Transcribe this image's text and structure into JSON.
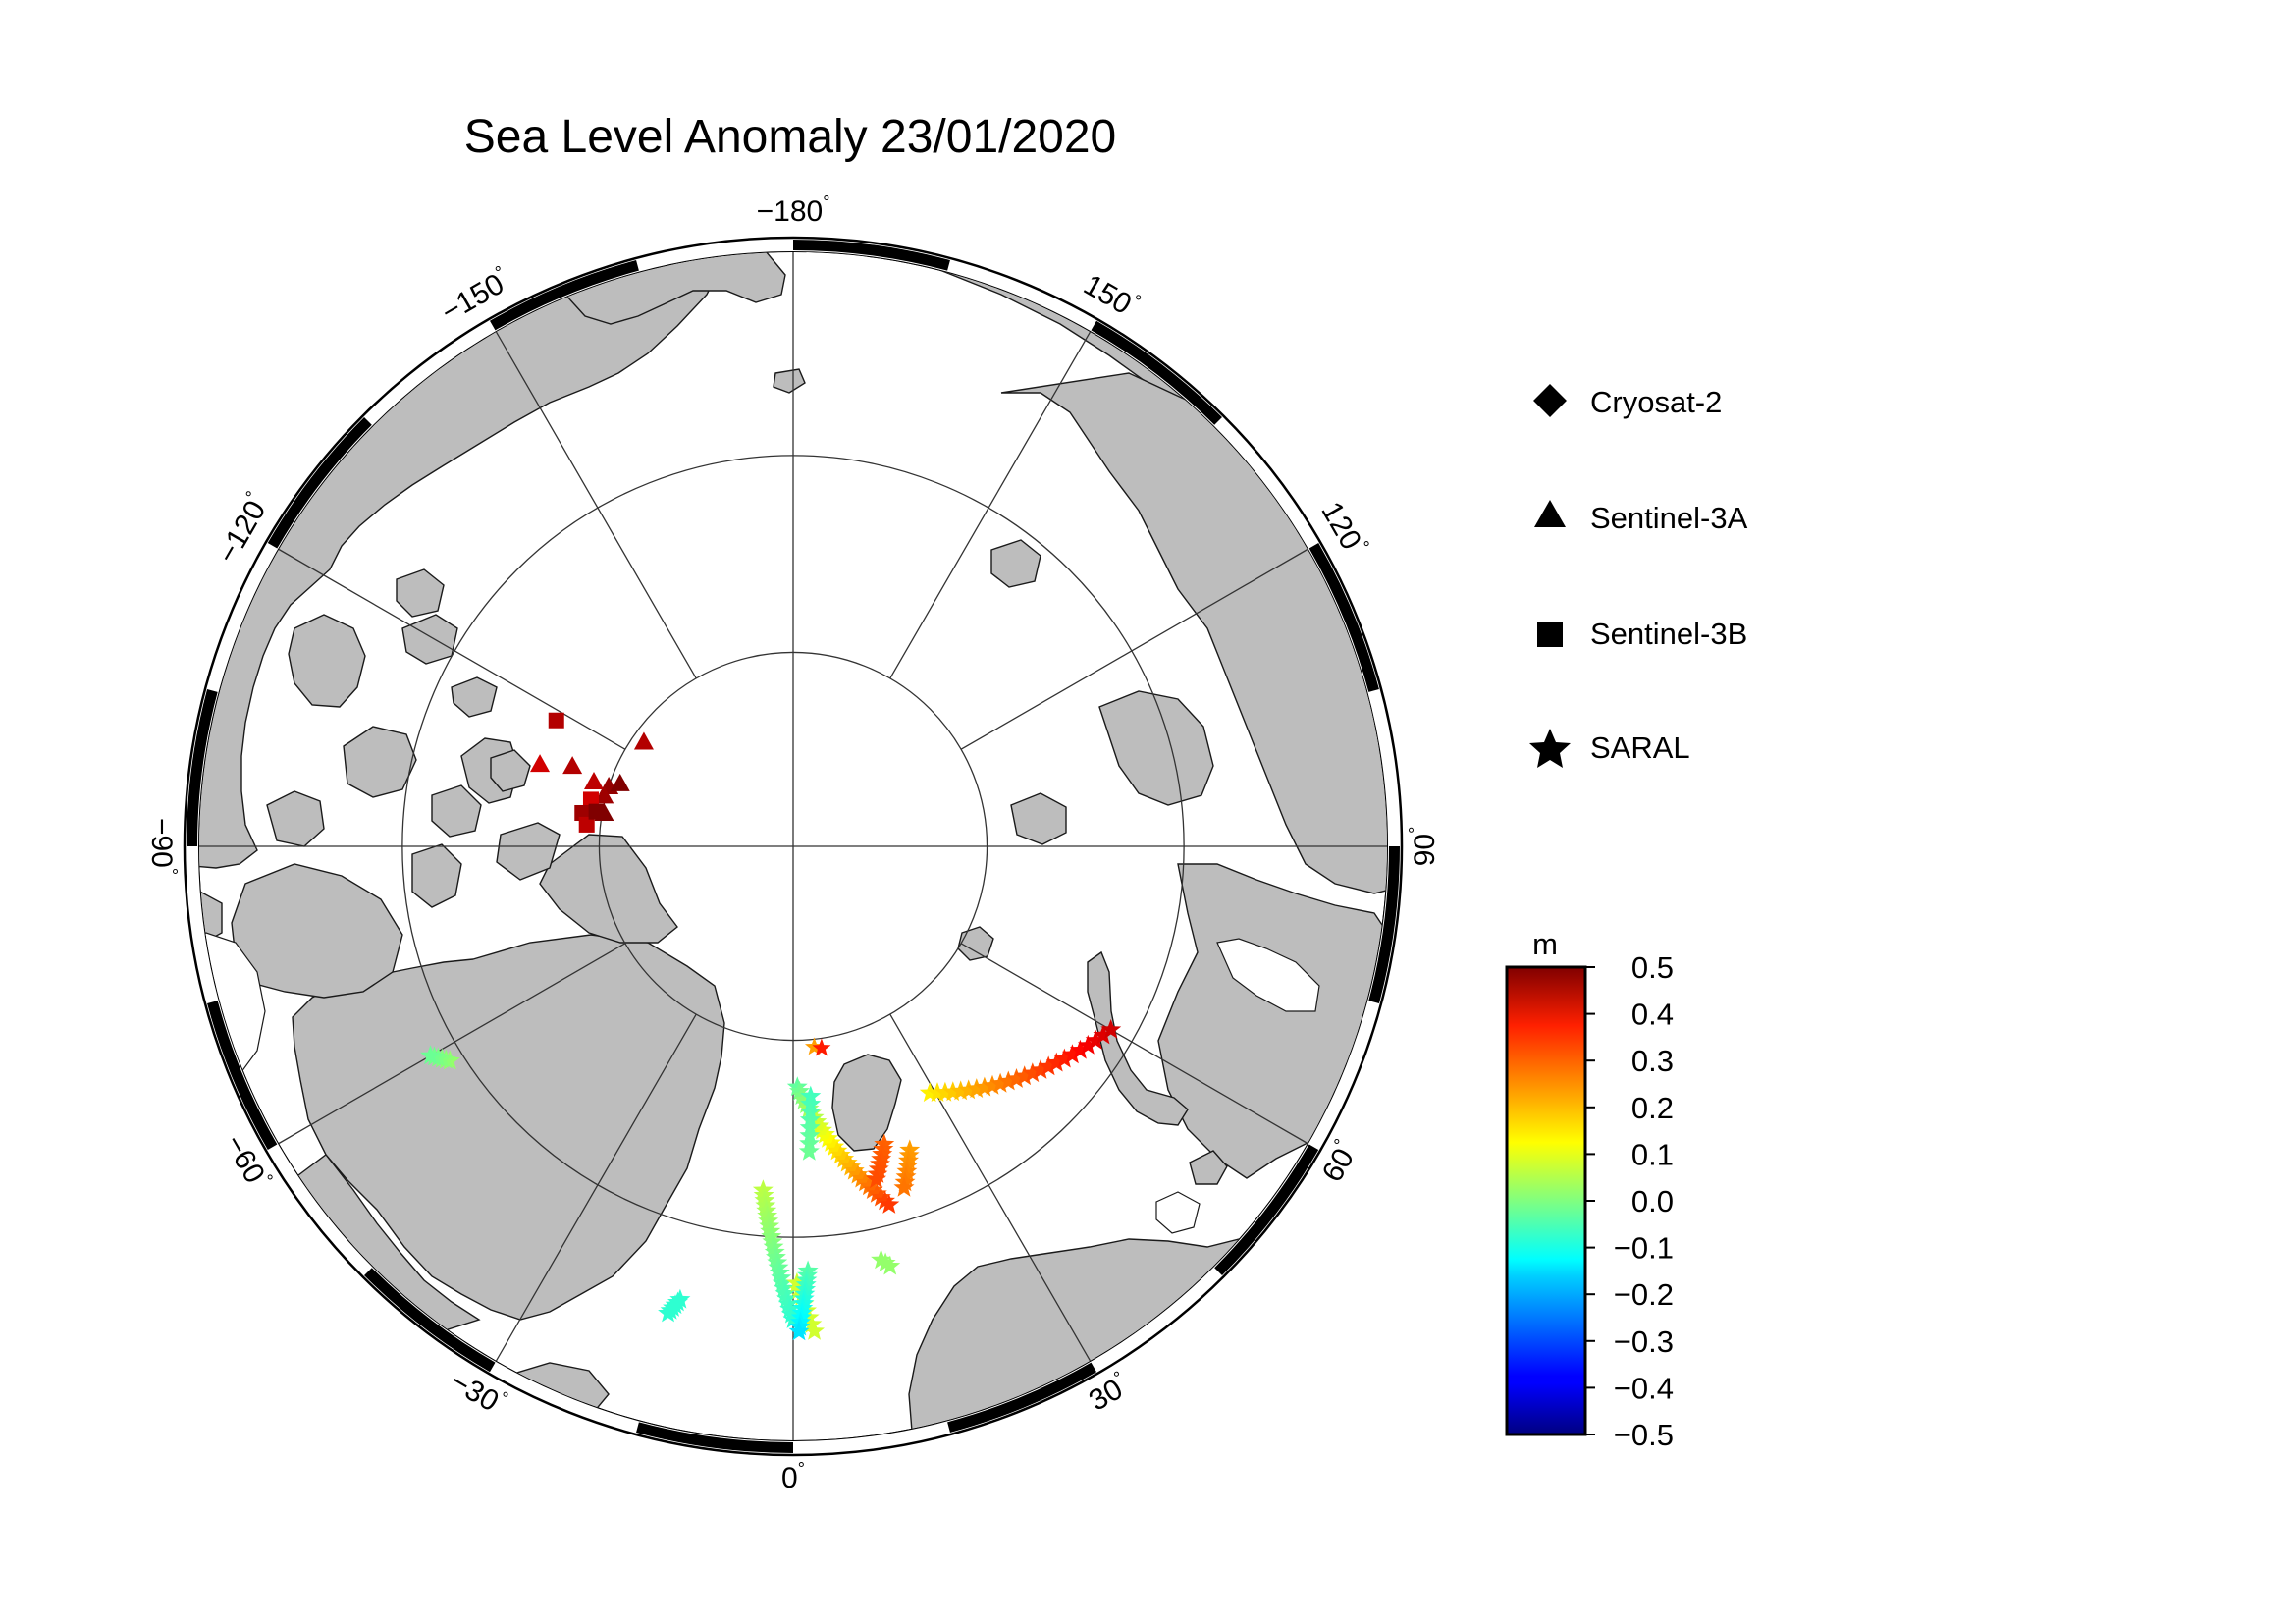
{
  "title": "Sea Level Anomaly 23/01/2020",
  "map": {
    "projection": "north-polar-stereographic",
    "center_label": "North Pole",
    "longitude_labels": [
      {
        "lon": -180,
        "text": "−180",
        "sup": "°"
      },
      {
        "lon": 150,
        "text": "150",
        "sup": "°"
      },
      {
        "lon": 120,
        "text": "120",
        "sup": "°"
      },
      {
        "lon": 90,
        "text": "90",
        "sup": "°"
      },
      {
        "lon": 60,
        "text": "60",
        "sup": "°"
      },
      {
        "lon": 30,
        "text": "30",
        "sup": "°"
      },
      {
        "lon": 0,
        "text": "0",
        "sup": "°"
      },
      {
        "lon": -30,
        "text": "−30",
        "sup": "°"
      },
      {
        "lon": -60,
        "text": "−60",
        "sup": "°"
      },
      {
        "lon": -90,
        "text": "−90",
        "sup": "°"
      },
      {
        "lon": -120,
        "text": "−120",
        "sup": "°"
      },
      {
        "lon": -150,
        "text": "−150",
        "sup": "°"
      }
    ],
    "land_color": "#bdbdbd",
    "ocean_color": "#ffffff"
  },
  "legend": {
    "items": [
      {
        "label": "Cryosat-2",
        "symbol": "diamond"
      },
      {
        "label": "Sentinel-3A",
        "symbol": "triangle"
      },
      {
        "label": "Sentinel-3B",
        "symbol": "square"
      },
      {
        "label": "SARAL",
        "symbol": "star"
      }
    ]
  },
  "colorbar": {
    "unit": "m",
    "min": -0.5,
    "max": 0.5,
    "tick_labels": [
      "0.5",
      "0.4",
      "0.3",
      "0.2",
      "0.1",
      "0.0",
      "−0.1",
      "−0.2",
      "−0.3",
      "−0.4",
      "−0.5"
    ],
    "colormap": "jet"
  },
  "observations": [
    {
      "satellite": "Sentinel-3A",
      "lat": 80.6,
      "lon": -125,
      "sla": 0.45
    },
    {
      "satellite": "Sentinel-3A",
      "lat": 80.0,
      "lon": -108,
      "sla": 0.48
    },
    {
      "satellite": "Sentinel-3A",
      "lat": 80.5,
      "lon": -110,
      "sla": 0.5
    },
    {
      "satellite": "Sentinel-3A",
      "lat": 79.6,
      "lon": -100,
      "sla": 0.46
    },
    {
      "satellite": "Sentinel-3A",
      "lat": 76.3,
      "lon": -108,
      "sla": 0.42
    },
    {
      "satellite": "Sentinel-3A",
      "lat": 77.9,
      "lon": -110,
      "sla": 0.45
    },
    {
      "satellite": "Sentinel-3A",
      "lat": 79.2,
      "lon": -108,
      "sla": 0.44
    },
    {
      "satellite": "Sentinel-3A",
      "lat": 79.9,
      "lon": -105,
      "sla": 0.47
    },
    {
      "satellite": "Sentinel-3A",
      "lat": 80.1,
      "lon": -100,
      "sla": 0.5
    },
    {
      "satellite": "Sentinel-3B",
      "lat": 76.2,
      "lon": -118,
      "sla": 0.45
    },
    {
      "satellite": "Sentinel-3B",
      "lat": 79.3,
      "lon": -103,
      "sla": 0.42
    },
    {
      "satellite": "Sentinel-3B",
      "lat": 79.0,
      "lon": -99,
      "sla": 0.47
    },
    {
      "satellite": "Sentinel-3B",
      "lat": 79.3,
      "lon": -96,
      "sla": 0.44
    },
    {
      "satellite": "Sentinel-3B",
      "lat": 79.7,
      "lon": -100,
      "sla": 0.5
    },
    {
      "satellite": "SARAL",
      "lat": 79.6,
      "lon": 6,
      "sla": 0.22
    },
    {
      "satellite": "SARAL",
      "lat": 79.5,
      "lon": 8,
      "sla": 0.35
    },
    {
      "satellite": "SARAL",
      "lat": 71.2,
      "lon": 60,
      "sla": 0.42
    }
  ],
  "tracks": [
    {
      "satellite": "SARAL",
      "from": {
        "lat": 75.5,
        "lon": 29
      },
      "to": {
        "lat": 71.2,
        "lon": 60
      },
      "sla_from": 0.14,
      "sla_to": 0.42,
      "points": 24
    },
    {
      "satellite": "SARAL",
      "from": {
        "lat": 77.6,
        "lon": 1
      },
      "to": {
        "lat": 71.0,
        "lon": 15
      },
      "sla_from": -0.03,
      "sla_to": 0.32,
      "points": 30
    },
    {
      "satellite": "SARAL",
      "from": {
        "lat": 77.1,
        "lon": 4
      },
      "to": {
        "lat": 74.3,
        "lon": 3
      },
      "sla_from": -0.06,
      "sla_to": -0.02,
      "points": 8
    },
    {
      "satellite": "SARAL",
      "from": {
        "lat": 74.0,
        "lon": 17
      },
      "to": {
        "lat": 72.4,
        "lon": 14
      },
      "sla_from": 0.28,
      "sla_to": 0.3,
      "points": 8
    },
    {
      "satellite": "SARAL",
      "from": {
        "lat": 73.3,
        "lon": 21
      },
      "to": {
        "lat": 71.6,
        "lon": 18
      },
      "sla_from": 0.22,
      "sla_to": 0.26,
      "points": 8
    },
    {
      "satellite": "SARAL",
      "from": {
        "lat": 72.3,
        "lon": -5
      },
      "to": {
        "lat": 65.9,
        "lon": 0
      },
      "sla_from": 0.06,
      "sla_to": -0.08,
      "points": 26
    },
    {
      "satellite": "SARAL",
      "from": {
        "lat": 67.7,
        "lon": 0.5
      },
      "to": {
        "lat": 65.3,
        "lon": 2.5
      },
      "sla_from": 0.08,
      "sla_to": 0.08,
      "points": 8
    },
    {
      "satellite": "SARAL",
      "from": {
        "lat": 68.3,
        "lon": 2
      },
      "to": {
        "lat": 65.3,
        "lon": 0.7
      },
      "sla_from": -0.04,
      "sla_to": -0.15,
      "points": 14
    },
    {
      "satellite": "SARAL",
      "from": {
        "lat": 66.2,
        "lon": -14
      },
      "to": {
        "lat": 65.4,
        "lon": -15
      },
      "sla_from": -0.08,
      "sla_to": -0.08,
      "points": 6
    },
    {
      "satellite": "SARAL",
      "from": {
        "lat": 69.3,
        "lon": -58
      },
      "to": {
        "lat": 68.6,
        "lon": -60
      },
      "sla_from": 0.02,
      "sla_to": -0.02,
      "points": 6
    },
    {
      "satellite": "SARAL",
      "from": {
        "lat": 68.4,
        "lon": 12
      },
      "to": {
        "lat": 68.0,
        "lon": 13
      },
      "sla_from": 0.02,
      "sla_to": 0.02,
      "points": 3
    }
  ]
}
